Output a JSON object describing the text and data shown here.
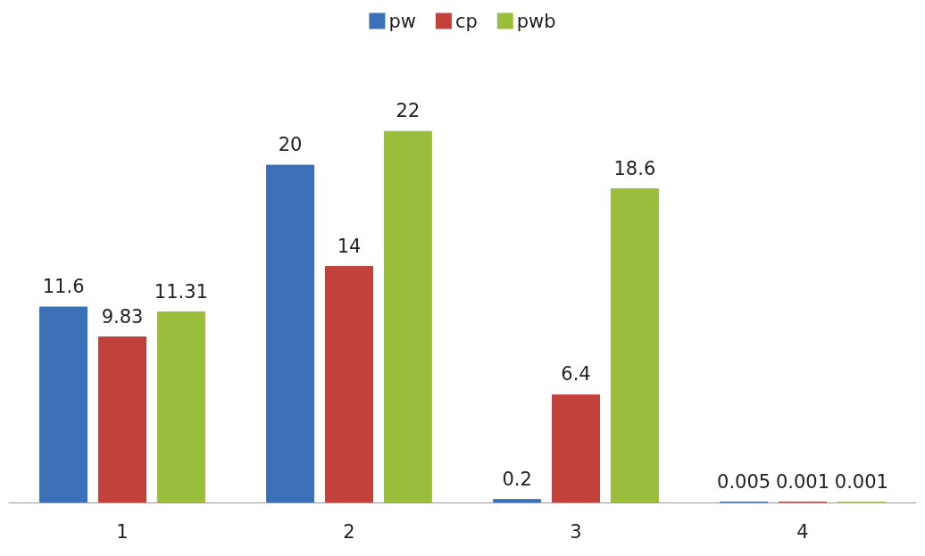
{
  "chart_data": {
    "type": "bar",
    "categories": [
      "1",
      "2",
      "3",
      "4"
    ],
    "series": [
      {
        "name": "pw",
        "color": "#3b70b8",
        "values": [
          11.6,
          20,
          0.2,
          0.005
        ]
      },
      {
        "name": "cp",
        "color": "#c3413d",
        "values": [
          9.83,
          14,
          6.4,
          0.001
        ]
      },
      {
        "name": "pwb",
        "color": "#9bbd3c",
        "values": [
          11.31,
          22,
          18.6,
          0.001
        ]
      }
    ],
    "data_labels": true,
    "legend": "top",
    "grid": false
  }
}
